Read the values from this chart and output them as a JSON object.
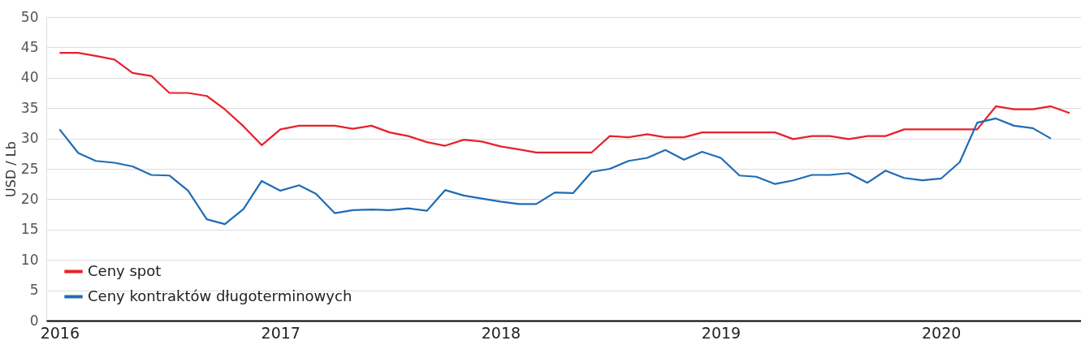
{
  "chart_data": {
    "type": "line",
    "ylabel": "USD / Lb",
    "x": [
      "2016-01",
      "2016-02",
      "2016-03",
      "2016-04",
      "2016-05",
      "2016-06",
      "2016-07",
      "2016-08",
      "2016-09",
      "2016-10",
      "2016-11",
      "2016-12",
      "2017-01",
      "2017-02",
      "2017-03",
      "2017-04",
      "2017-05",
      "2017-06",
      "2017-07",
      "2017-08",
      "2017-09",
      "2017-10",
      "2017-11",
      "2017-12",
      "2018-01",
      "2018-02",
      "2018-03",
      "2018-04",
      "2018-05",
      "2018-06",
      "2018-07",
      "2018-08",
      "2018-09",
      "2018-10",
      "2018-11",
      "2018-12",
      "2019-01",
      "2019-02",
      "2019-03",
      "2019-04",
      "2019-05",
      "2019-06",
      "2019-07",
      "2019-08",
      "2019-09",
      "2019-10",
      "2019-11",
      "2019-12",
      "2020-01",
      "2020-02",
      "2020-03",
      "2020-04",
      "2020-05",
      "2020-06",
      "2020-07",
      "2020-08"
    ],
    "series": [
      {
        "name": "Ceny spot",
        "color": "#e8202a",
        "values": [
          44.1,
          44.1,
          43.6,
          43.0,
          40.8,
          40.3,
          37.5,
          37.5,
          37.0,
          34.8,
          32.0,
          28.9,
          31.5,
          32.1,
          32.1,
          32.1,
          31.6,
          32.1,
          31.0,
          30.4,
          29.4,
          28.8,
          29.8,
          29.5,
          28.7,
          28.2,
          27.7,
          27.7,
          27.7,
          27.7,
          30.4,
          30.2,
          30.7,
          30.2,
          30.2,
          31.0,
          31.0,
          31.0,
          31.0,
          31.0,
          29.9,
          30.4,
          30.4,
          29.9,
          30.4,
          30.4,
          31.5,
          31.5,
          31.5,
          31.5,
          31.5,
          35.3,
          34.8,
          34.8,
          35.3,
          34.2
        ]
      },
      {
        "name": "Ceny kontraktów długoterminowych",
        "color": "#1f6cb5",
        "values": [
          31.5,
          27.6,
          26.3,
          26.0,
          25.4,
          24.0,
          23.9,
          21.4,
          16.7,
          15.9,
          18.4,
          23.0,
          21.4,
          22.3,
          20.9,
          17.7,
          18.2,
          18.3,
          18.2,
          18.5,
          18.1,
          21.5,
          20.6,
          20.1,
          19.6,
          19.2,
          19.2,
          21.1,
          21.0,
          24.5,
          25.0,
          26.3,
          26.8,
          28.1,
          26.5,
          27.8,
          26.8,
          23.9,
          23.7,
          22.5,
          23.1,
          24.0,
          24.0,
          24.3,
          22.7,
          24.7,
          23.5,
          23.1,
          23.4,
          26.1,
          32.6,
          33.3,
          32.1,
          31.7,
          30.0,
          null
        ]
      }
    ],
    "xlim": [
      "2015-12-10",
      "2020-08-20"
    ],
    "xticks": [
      "2016",
      "2017",
      "2018",
      "2019",
      "2020"
    ],
    "ylim": [
      0,
      50
    ],
    "yticks": [
      0,
      5,
      10,
      15,
      20,
      25,
      30,
      35,
      40,
      45,
      50
    ],
    "grid": "y",
    "legend": "bottom left",
    "line_style": "solid",
    "marker": "none"
  }
}
